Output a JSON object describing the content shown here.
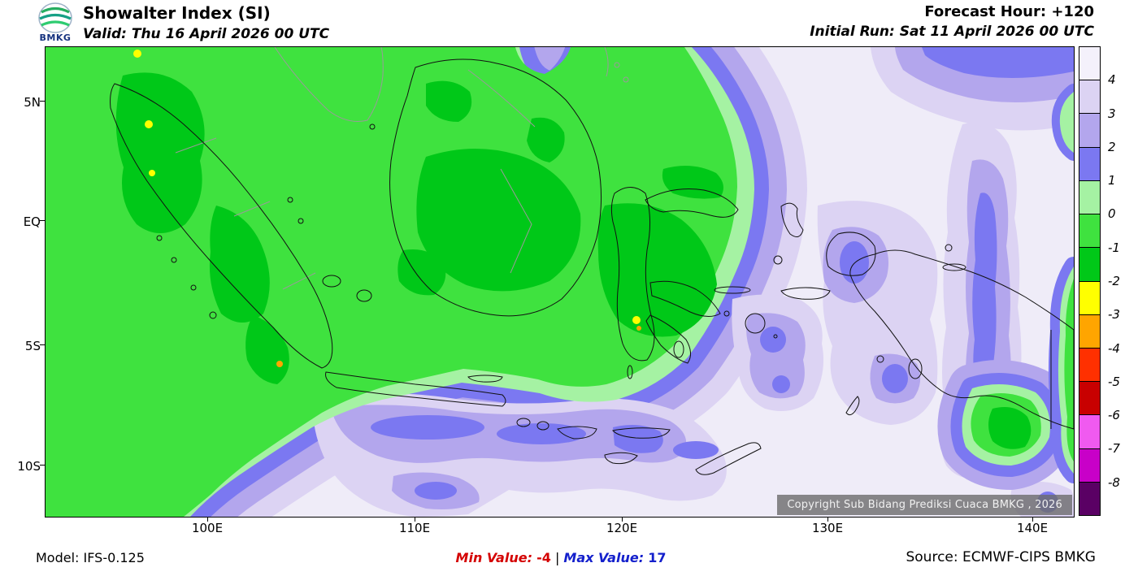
{
  "header": {
    "logo_text": "BMKG",
    "title": "Showalter Index (SI)",
    "valid": "Valid: Thu 16 April 2026 00 UTC",
    "forecast_hour": "Forecast Hour: +120",
    "initial_run": "Initial Run: Sat 11 April 2026 00 UTC"
  },
  "map": {
    "copyright": "Copyright Sub Bidang Prediksi Cuaca BMKG , 2026"
  },
  "axes": {
    "y_labels": [
      "5N",
      "EQ",
      "5S",
      "10S"
    ],
    "x_labels": [
      "100E",
      "110E",
      "120E",
      "130E",
      "140E"
    ]
  },
  "legend": {
    "labels": [
      "4",
      "3",
      "2",
      "1",
      "0",
      "-1",
      "-2",
      "-3",
      "-4",
      "-5",
      "-6",
      "-7",
      "-8"
    ],
    "colors": [
      "#F4F1FB",
      "#DCD3F3",
      "#B3A6ED",
      "#7B78F1",
      "#A5F2A3",
      "#3FE23F",
      "#00C818",
      "#FFFF00",
      "#FFA500",
      "#FF3000",
      "#C80000",
      "#F05AF0",
      "#C800C8",
      "#5A0064"
    ]
  },
  "colors": {
    "min_text": "#D40000",
    "max_text": "#1420CC",
    "background_field": "#EFECF8"
  },
  "footer": {
    "model": "Model: IFS-0.125",
    "min_label": "Min Value:",
    "min_value": "-4",
    "separator": "|",
    "max_label": "Max Value:",
    "max_value": "17",
    "source": "Source: ECMWF-CIPS BMKG"
  },
  "chart_data": {
    "type": "heatmap",
    "title": "Showalter Index (SI)",
    "valid_time": "Thu 16 April 2026 00 UTC",
    "forecast_hour": "+120",
    "initial_run": "Sat 11 April 2026 00 UTC",
    "model": "IFS-0.125",
    "source": "ECMWF-CIPS BMKG",
    "min_value": -4,
    "max_value": 17,
    "colorbar_levels": [
      4,
      3,
      2,
      1,
      0,
      -1,
      -2,
      -3,
      -4,
      -5,
      -6,
      -7,
      -8
    ],
    "x_ticks": [
      "100E",
      "110E",
      "120E",
      "130E",
      "140E"
    ],
    "y_ticks": [
      "5N",
      "EQ",
      "5S",
      "10S"
    ],
    "legend_position": "right",
    "grid": false,
    "summary": "Showalter Index forecast over Indonesia: unstable (SI 0 to -2, green shades) across Sumatra, Kalimantan, Sulawesi and western seas with small -2 to -4 pockets (yellow/orange specks); stable air (SI 1 to >4, purple to pale lavender) over eastern seas, southern Java to Lesser Sunda, Maluku and Papua."
  }
}
